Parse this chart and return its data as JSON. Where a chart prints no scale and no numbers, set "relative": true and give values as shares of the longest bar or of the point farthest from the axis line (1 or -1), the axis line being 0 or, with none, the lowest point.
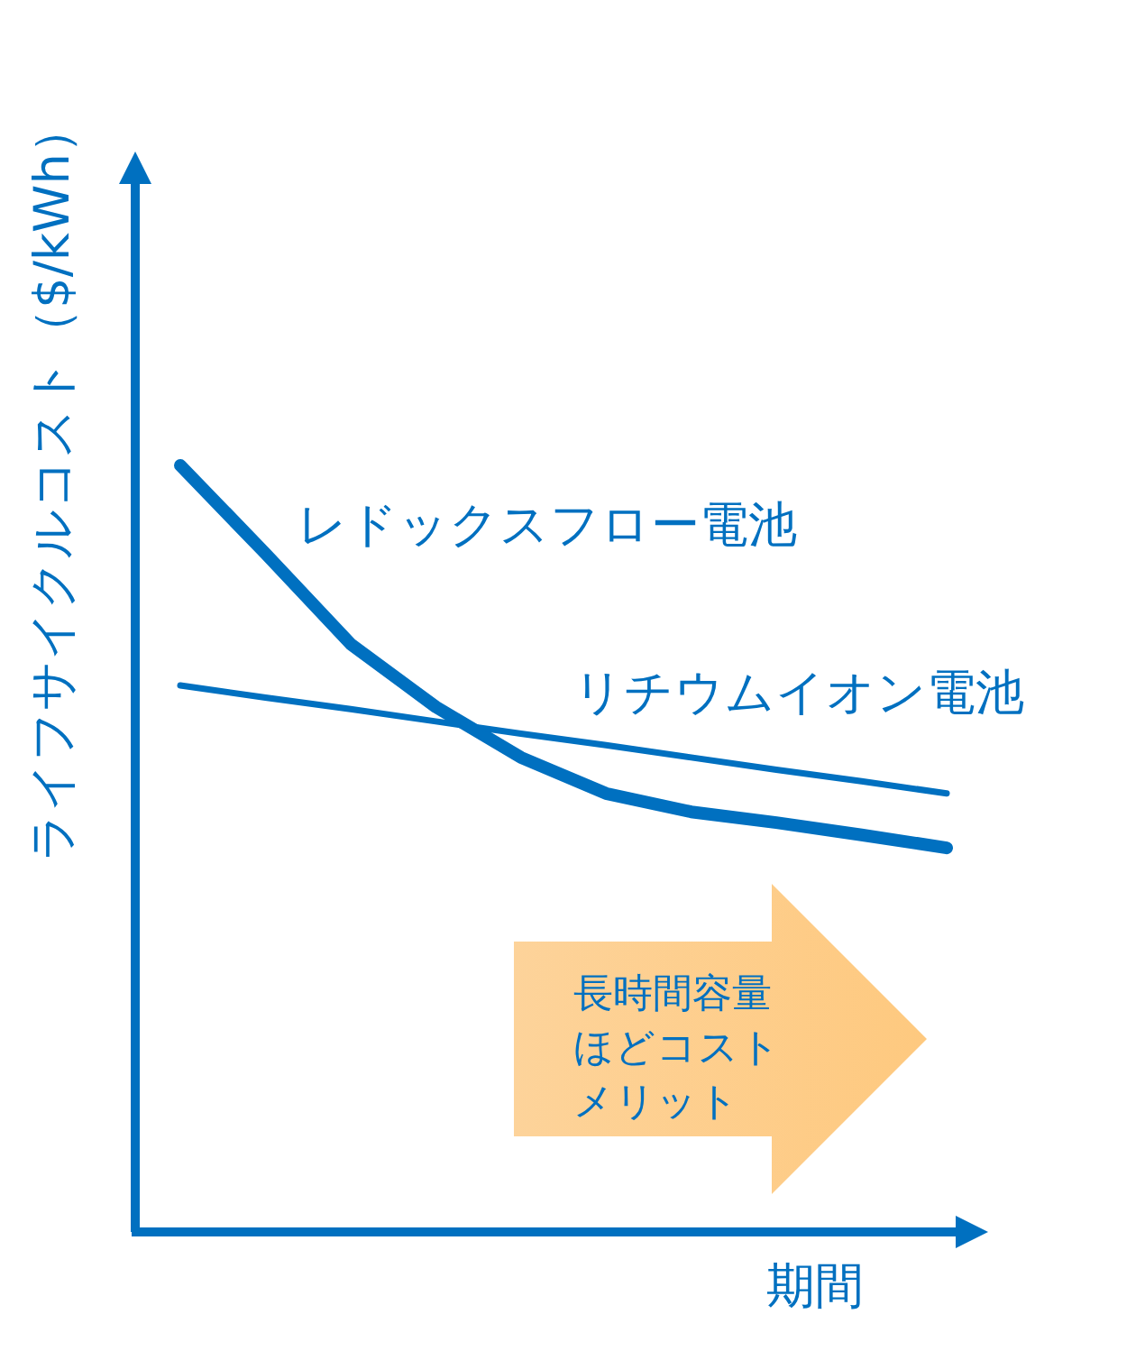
{
  "chart_data": {
    "type": "line",
    "relative": true,
    "ylabel": "ライフサイクルコスト（$/kWh）",
    "xlabel": "期間",
    "categories": [
      null,
      null,
      null,
      null,
      null,
      null,
      null,
      null,
      null,
      null
    ],
    "series": [
      {
        "name": "レドックスフロー電池",
        "color": "#0070c0",
        "values": [
          1,
          0.885,
          0.767,
          0.685,
          0.619,
          0.572,
          0.548,
          0.534,
          0.518,
          0.501
        ]
      },
      {
        "name": "リチウムイオン電池",
        "color": "#0070c0",
        "values": [
          0.713,
          0.697,
          0.682,
          0.666,
          0.65,
          0.635,
          0.619,
          0.603,
          0.588,
          0.572
        ]
      }
    ],
    "annotations": [
      "長時間容量ほどコストメリット"
    ]
  }
}
